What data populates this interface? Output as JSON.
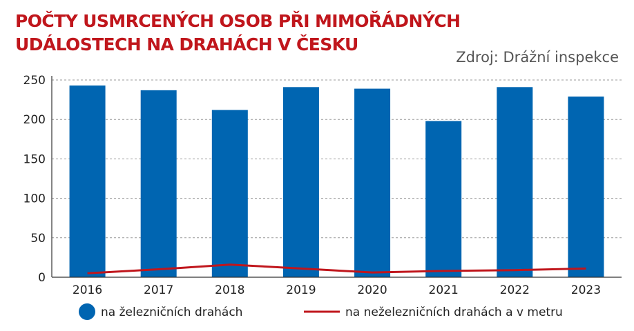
{
  "chart_data": {
    "type": "bar",
    "title": "POČTY USMRCENÝCH OSOB PŘI MIMOŘÁDNÝCH UDÁLOSTECH NA DRAHÁCH V ČESKU",
    "source": "Zdroj: Drážní inspekce",
    "categories": [
      "2016",
      "2017",
      "2018",
      "2019",
      "2020",
      "2021",
      "2022",
      "2023"
    ],
    "series": [
      {
        "name": "na železničních drahách",
        "kind": "bar",
        "color": "#0065b1",
        "values": [
          243,
          237,
          212,
          241,
          239,
          198,
          241,
          229
        ]
      },
      {
        "name": "na neželezničních drahách a v metru",
        "kind": "line",
        "color": "#c0161c",
        "values": [
          5,
          10,
          16,
          11,
          6,
          8,
          9,
          11
        ]
      }
    ],
    "yticks": [
      "0",
      "50",
      "100",
      "150",
      "200",
      "250"
    ],
    "ylim": [
      0,
      250
    ],
    "grid": true,
    "legend_position": "bottom"
  }
}
